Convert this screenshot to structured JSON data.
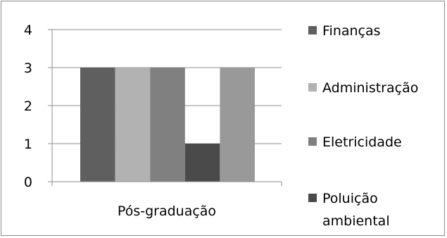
{
  "chart_data": {
    "type": "bar",
    "categories": [
      "Pós-graduação"
    ],
    "series": [
      {
        "name": "Finanças",
        "values": [
          3
        ],
        "color": "#5f5f5f"
      },
      {
        "name": "Administração",
        "values": [
          3
        ],
        "color": "#b2b2b2"
      },
      {
        "name": "Eletricidade",
        "values": [
          3
        ],
        "color": "#808080"
      },
      {
        "name": "Poluição ambiental",
        "values": [
          1
        ],
        "color": "#4a4a4a"
      },
      {
        "name": "",
        "values": [
          3
        ],
        "color": "#999999"
      }
    ],
    "legend": [
      {
        "lines": [
          "Finanças"
        ],
        "color": "#5f5f5f"
      },
      {
        "lines": [
          "Administração"
        ],
        "color": "#b2b2b2"
      },
      {
        "lines": [
          "Eletricidade"
        ],
        "color": "#808080"
      },
      {
        "lines": [
          "Poluição",
          "ambiental"
        ],
        "color": "#4a4a4a"
      }
    ],
    "yticks": [
      "0",
      "1",
      "2",
      "3",
      "4"
    ],
    "ylim": [
      0,
      4
    ],
    "grid": true,
    "legend_position": "right",
    "title": "",
    "xlabel": "",
    "ylabel": ""
  }
}
